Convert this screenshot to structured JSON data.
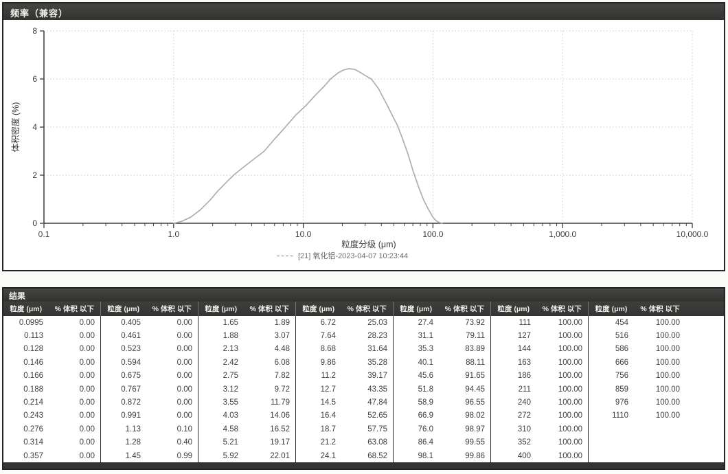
{
  "chart_data": {
    "type": "line",
    "title": "频率（兼容）",
    "xlabel": "粒度分级 (μm)",
    "ylabel": "体积密度 (%)",
    "x_scale": "log",
    "xlim": [
      0.1,
      10000
    ],
    "ylim": [
      0,
      8
    ],
    "y_ticks": [
      0,
      2,
      4,
      6,
      8
    ],
    "x_tick_values": [
      0.1,
      1,
      10,
      100,
      1000,
      10000
    ],
    "x_tick_labels": [
      "0.1",
      "1.0",
      "10.0",
      "100.0",
      "1,000.0",
      "10,000.0"
    ],
    "grid": "dotted",
    "legend_position": "bottom-center",
    "line_color": "#aab0ac",
    "grid_color": "#c9cdc9",
    "axis_color": "#3c3c3c",
    "series": [
      {
        "name": "[21] 氧化铝-2023-04-07 10:23:44",
        "x": [
          1.0,
          1.15,
          1.35,
          1.6,
          1.9,
          2.2,
          2.6,
          2.9,
          3.4,
          4.0,
          5.0,
          6.0,
          7.0,
          8.75,
          10.5,
          12.5,
          14.5,
          16.2,
          18.5,
          20.5,
          22.5,
          25,
          28,
          31,
          33.5,
          38,
          44,
          50,
          53,
          58,
          64,
          70,
          77,
          85,
          93,
          100,
          106,
          112,
          118
        ],
        "y": [
          0.0,
          0.08,
          0.25,
          0.55,
          0.95,
          1.35,
          1.75,
          2.0,
          2.3,
          2.6,
          3.0,
          3.5,
          3.9,
          4.5,
          4.9,
          5.35,
          5.7,
          6.0,
          6.25,
          6.38,
          6.43,
          6.4,
          6.25,
          6.1,
          6.0,
          5.6,
          4.95,
          4.35,
          4.1,
          3.55,
          2.9,
          2.2,
          1.55,
          0.95,
          0.55,
          0.25,
          0.1,
          0.03,
          0.0
        ]
      }
    ]
  },
  "results": {
    "title": "结果",
    "col_size_label": "粒度 (μm)",
    "col_pct_label": "% 体积 以下",
    "groups": [
      {
        "rows": [
          [
            "0.0995",
            "0.00"
          ],
          [
            "0.113",
            "0.00"
          ],
          [
            "0.128",
            "0.00"
          ],
          [
            "0.146",
            "0.00"
          ],
          [
            "0.166",
            "0.00"
          ],
          [
            "0.188",
            "0.00"
          ],
          [
            "0.214",
            "0.00"
          ],
          [
            "0.243",
            "0.00"
          ],
          [
            "0.276",
            "0.00"
          ],
          [
            "0.314",
            "0.00"
          ],
          [
            "0.357",
            "0.00"
          ]
        ]
      },
      {
        "rows": [
          [
            "0.405",
            "0.00"
          ],
          [
            "0.461",
            "0.00"
          ],
          [
            "0.523",
            "0.00"
          ],
          [
            "0.594",
            "0.00"
          ],
          [
            "0.675",
            "0.00"
          ],
          [
            "0.767",
            "0.00"
          ],
          [
            "0.872",
            "0.00"
          ],
          [
            "0.991",
            "0.00"
          ],
          [
            "1.13",
            "0.10"
          ],
          [
            "1.28",
            "0.40"
          ],
          [
            "1.45",
            "0.99"
          ]
        ]
      },
      {
        "rows": [
          [
            "1.65",
            "1.89"
          ],
          [
            "1.88",
            "3.07"
          ],
          [
            "2.13",
            "4.48"
          ],
          [
            "2.42",
            "6.08"
          ],
          [
            "2.75",
            "7.82"
          ],
          [
            "3.12",
            "9.72"
          ],
          [
            "3.55",
            "11.79"
          ],
          [
            "4.03",
            "14.06"
          ],
          [
            "4.58",
            "16.52"
          ],
          [
            "5.21",
            "19.17"
          ],
          [
            "5.92",
            "22.01"
          ]
        ]
      },
      {
        "rows": [
          [
            "6.72",
            "25.03"
          ],
          [
            "7.64",
            "28.23"
          ],
          [
            "8.68",
            "31.64"
          ],
          [
            "9.86",
            "35.28"
          ],
          [
            "11.2",
            "39.17"
          ],
          [
            "12.7",
            "43.35"
          ],
          [
            "14.5",
            "47.84"
          ],
          [
            "16.4",
            "52.65"
          ],
          [
            "18.7",
            "57.75"
          ],
          [
            "21.2",
            "63.08"
          ],
          [
            "24.1",
            "68.52"
          ]
        ]
      },
      {
        "rows": [
          [
            "27.4",
            "73.92"
          ],
          [
            "31.1",
            "79.11"
          ],
          [
            "35.3",
            "83.89"
          ],
          [
            "40.1",
            "88.11"
          ],
          [
            "45.6",
            "91.65"
          ],
          [
            "51.8",
            "94.45"
          ],
          [
            "58.9",
            "96.55"
          ],
          [
            "66.9",
            "98.02"
          ],
          [
            "76.0",
            "98.97"
          ],
          [
            "86.4",
            "99.55"
          ],
          [
            "98.1",
            "99.86"
          ]
        ]
      },
      {
        "rows": [
          [
            "111",
            "100.00"
          ],
          [
            "127",
            "100.00"
          ],
          [
            "144",
            "100.00"
          ],
          [
            "163",
            "100.00"
          ],
          [
            "186",
            "100.00"
          ],
          [
            "211",
            "100.00"
          ],
          [
            "240",
            "100.00"
          ],
          [
            "272",
            "100.00"
          ],
          [
            "310",
            "100.00"
          ],
          [
            "352",
            "100.00"
          ],
          [
            "400",
            "100.00"
          ]
        ]
      },
      {
        "rows": [
          [
            "454",
            "100.00"
          ],
          [
            "516",
            "100.00"
          ],
          [
            "586",
            "100.00"
          ],
          [
            "666",
            "100.00"
          ],
          [
            "756",
            "100.00"
          ],
          [
            "859",
            "100.00"
          ],
          [
            "976",
            "100.00"
          ],
          [
            "1110",
            "100.00"
          ]
        ]
      }
    ]
  }
}
